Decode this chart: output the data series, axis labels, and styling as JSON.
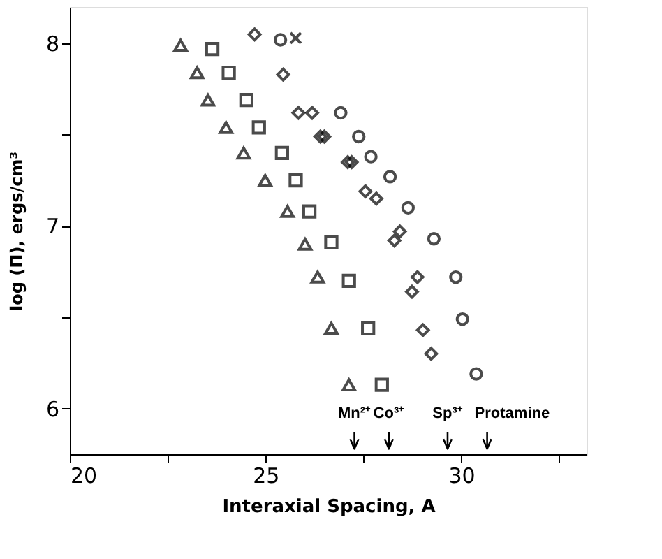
{
  "chart_data": {
    "type": "scatter",
    "xlabel": "Interaxial Spacing, A",
    "ylabel": "log (Π), ergs/cm³",
    "xlim": [
      20,
      33.2
    ],
    "ylim": [
      5.75,
      8.2
    ],
    "xticks": [
      20,
      {
        "value": 22.5,
        "label": null
      },
      25,
      {
        "value": 27.5,
        "label": null
      },
      30,
      {
        "value": 32.5,
        "label": null
      }
    ],
    "yticks": [
      6,
      {
        "value": 6.5,
        "label": null
      },
      7,
      {
        "value": 7.5,
        "label": null
      },
      8
    ],
    "grid": false,
    "series": [
      {
        "color": "#000000",
        "marker": "triangle",
        "x": [
          22.83,
          23.25,
          23.53,
          23.99,
          24.44,
          24.99,
          25.56,
          26.01,
          26.33,
          26.68,
          27.13
        ],
        "values": [
          7.99,
          7.84,
          7.69,
          7.54,
          7.4,
          7.25,
          7.08,
          6.9,
          6.72,
          6.44,
          6.13
        ]
      },
      {
        "color": "#000000",
        "marker": "square",
        "x": [
          23.64,
          24.06,
          24.51,
          24.83,
          25.42,
          25.77,
          26.12,
          26.68,
          27.13,
          27.62,
          27.97
        ],
        "values": [
          7.97,
          7.84,
          7.69,
          7.54,
          7.4,
          7.25,
          7.08,
          6.91,
          6.7,
          6.44,
          6.13
        ]
      },
      {
        "color": "#000000",
        "marker": "diamond",
        "x": [
          24.72,
          25.45,
          25.84,
          26.19,
          26.4,
          26.5,
          27.1,
          27.2,
          27.55,
          27.83,
          28.43,
          28.29,
          28.88,
          28.74,
          29.02,
          29.23
        ],
        "values": [
          8.05,
          7.83,
          7.62,
          7.62,
          7.49,
          7.49,
          7.35,
          7.35,
          7.19,
          7.15,
          6.97,
          6.92,
          6.72,
          6.64,
          6.43,
          6.3
        ]
      },
      {
        "color": "#000000",
        "marker": "circle",
        "x": [
          25.38,
          26.92,
          27.38,
          27.69,
          28.18,
          28.64,
          29.3,
          29.86,
          30.03,
          30.38
        ],
        "values": [
          8.02,
          7.62,
          7.49,
          7.38,
          7.27,
          7.1,
          6.93,
          6.72,
          6.49,
          6.19
        ]
      },
      {
        "color": "#000000",
        "marker": "cross",
        "x": [
          25.77
        ],
        "values": [
          8.03
        ]
      }
    ],
    "ref_lines": [
      {
        "axis": "x",
        "value": 27.27,
        "label": "Mn²⁺"
      },
      {
        "axis": "x",
        "value": 28.15,
        "label": "Co³⁺"
      },
      {
        "axis": "x",
        "value": 29.65,
        "label": "Sp³⁺"
      },
      {
        "axis": "x",
        "value": 30.66,
        "label": "Protamine"
      }
    ]
  }
}
